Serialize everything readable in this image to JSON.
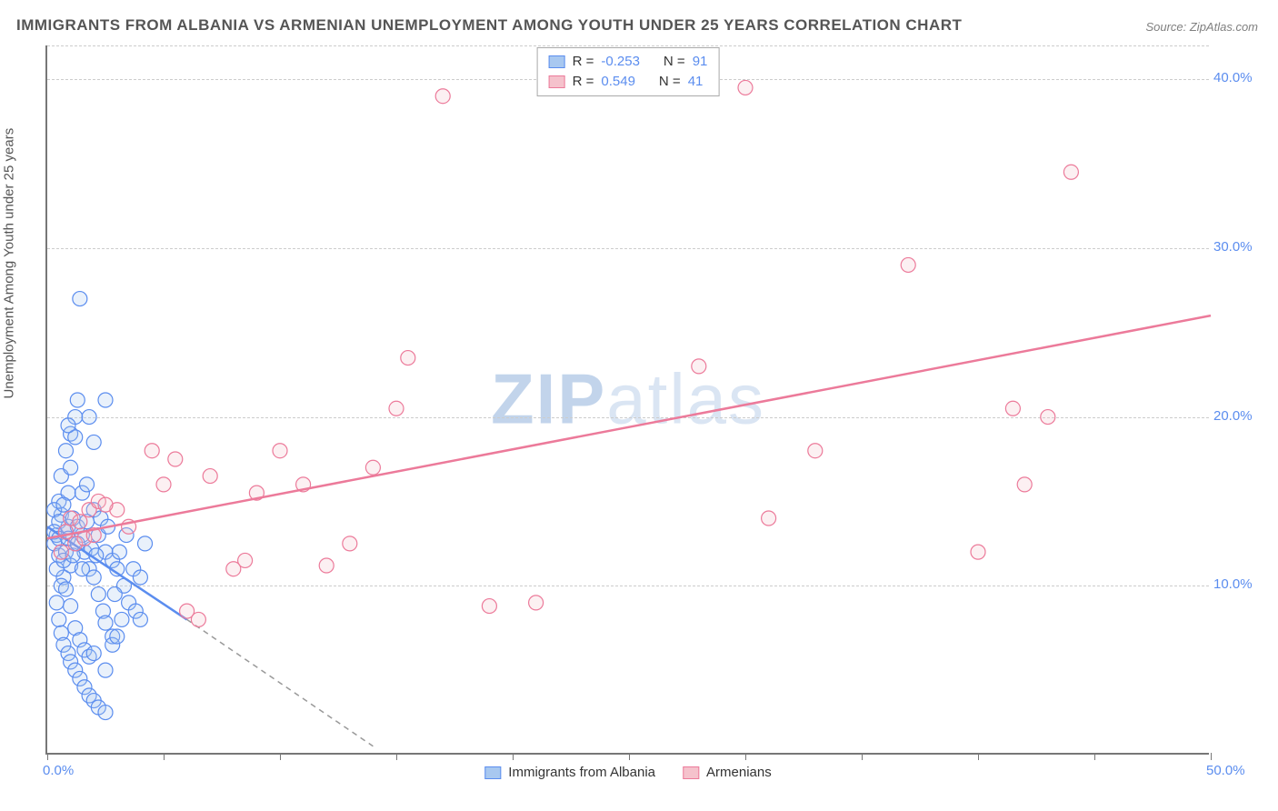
{
  "title": "IMMIGRANTS FROM ALBANIA VS ARMENIAN UNEMPLOYMENT AMONG YOUTH UNDER 25 YEARS CORRELATION CHART",
  "source": "Source: ZipAtlas.com",
  "y_axis_label": "Unemployment Among Youth under 25 years",
  "watermark_bold": "ZIP",
  "watermark_rest": "atlas",
  "chart": {
    "type": "scatter",
    "xlim": [
      0,
      50
    ],
    "ylim": [
      0,
      42
    ],
    "x_ticks": [
      0,
      5,
      10,
      15,
      20,
      25,
      30,
      35,
      40,
      45,
      50
    ],
    "x_tick_labels": {
      "0": "0.0%",
      "50": "50.0%"
    },
    "y_ticks": [
      10,
      20,
      30,
      40
    ],
    "y_tick_labels": {
      "10": "10.0%",
      "20": "20.0%",
      "30": "30.0%",
      "40": "40.0%"
    },
    "grid_color": "#cccccc",
    "background_color": "#ffffff",
    "axis_color": "#777777",
    "tick_label_color": "#5b8def",
    "marker_radius": 8,
    "series": [
      {
        "name": "Immigrants from Albania",
        "color_fill": "#a8c8f0",
        "color_stroke": "#5b8def",
        "R_label": "R =",
        "R": "-0.253",
        "N_label": "N =",
        "N": "91",
        "trend": {
          "x1": 0,
          "y1": 13.5,
          "x2": 6,
          "y2": 8.0,
          "dash_ext_x": 14,
          "dash_ext_y": 0.5
        },
        "points": [
          [
            0.3,
            12.5
          ],
          [
            0.4,
            13.0
          ],
          [
            0.5,
            11.8
          ],
          [
            0.6,
            14.2
          ],
          [
            0.7,
            10.5
          ],
          [
            0.8,
            12.0
          ],
          [
            0.9,
            13.5
          ],
          [
            1.0,
            11.2
          ],
          [
            0.5,
            15.0
          ],
          [
            0.6,
            16.5
          ],
          [
            0.8,
            18.0
          ],
          [
            1.0,
            19.0
          ],
          [
            1.2,
            20.0
          ],
          [
            1.3,
            21.0
          ],
          [
            1.0,
            17.0
          ],
          [
            0.9,
            15.5
          ],
          [
            1.5,
            13.0
          ],
          [
            1.6,
            12.0
          ],
          [
            1.8,
            11.0
          ],
          [
            2.0,
            10.5
          ],
          [
            2.2,
            9.5
          ],
          [
            2.4,
            8.5
          ],
          [
            2.5,
            7.8
          ],
          [
            2.8,
            7.0
          ],
          [
            0.4,
            9.0
          ],
          [
            0.5,
            8.0
          ],
          [
            0.6,
            7.2
          ],
          [
            0.7,
            6.5
          ],
          [
            0.9,
            6.0
          ],
          [
            1.0,
            5.5
          ],
          [
            1.2,
            5.0
          ],
          [
            1.4,
            4.5
          ],
          [
            1.6,
            4.0
          ],
          [
            1.8,
            3.5
          ],
          [
            2.0,
            3.2
          ],
          [
            2.2,
            2.8
          ],
          [
            2.5,
            2.5
          ],
          [
            2.8,
            6.5
          ],
          [
            3.0,
            7.0
          ],
          [
            3.2,
            8.0
          ],
          [
            0.3,
            14.5
          ],
          [
            0.5,
            13.8
          ],
          [
            0.7,
            14.8
          ],
          [
            0.8,
            13.2
          ],
          [
            1.1,
            14.0
          ],
          [
            1.3,
            13.5
          ],
          [
            1.5,
            15.5
          ],
          [
            1.7,
            16.0
          ],
          [
            2.0,
            14.5
          ],
          [
            2.2,
            13.0
          ],
          [
            2.5,
            12.0
          ],
          [
            2.8,
            11.5
          ],
          [
            3.0,
            11.0
          ],
          [
            3.3,
            10.0
          ],
          [
            3.5,
            9.0
          ],
          [
            3.8,
            8.5
          ],
          [
            4.0,
            8.0
          ],
          [
            4.2,
            12.5
          ],
          [
            1.4,
            27.0
          ],
          [
            2.5,
            21.0
          ],
          [
            1.8,
            20.0
          ],
          [
            2.0,
            18.5
          ],
          [
            1.2,
            18.8
          ],
          [
            0.9,
            19.5
          ],
          [
            0.4,
            11.0
          ],
          [
            0.6,
            10.0
          ],
          [
            0.8,
            9.8
          ],
          [
            1.0,
            8.8
          ],
          [
            1.2,
            7.5
          ],
          [
            1.4,
            6.8
          ],
          [
            1.6,
            6.2
          ],
          [
            1.8,
            5.8
          ],
          [
            0.3,
            13.2
          ],
          [
            0.5,
            12.8
          ],
          [
            0.7,
            11.5
          ],
          [
            0.9,
            12.8
          ],
          [
            1.1,
            11.8
          ],
          [
            1.3,
            12.5
          ],
          [
            1.5,
            11.0
          ],
          [
            1.7,
            13.8
          ],
          [
            1.9,
            12.2
          ],
          [
            2.1,
            11.8
          ],
          [
            2.3,
            14.0
          ],
          [
            2.6,
            13.5
          ],
          [
            2.9,
            9.5
          ],
          [
            3.1,
            12.0
          ],
          [
            3.4,
            13.0
          ],
          [
            3.7,
            11.0
          ],
          [
            4.0,
            10.5
          ],
          [
            2.0,
            6.0
          ],
          [
            2.5,
            5.0
          ]
        ]
      },
      {
        "name": "Armenians",
        "color_fill": "#f5c2cc",
        "color_stroke": "#ec7a9a",
        "R_label": "R =",
        "R": "0.549",
        "N_label": "N =",
        "N": "41",
        "trend": {
          "x1": 0,
          "y1": 12.8,
          "x2": 50,
          "y2": 26.0
        },
        "points": [
          [
            0.6,
            12.0
          ],
          [
            0.8,
            13.2
          ],
          [
            1.0,
            14.0
          ],
          [
            1.2,
            12.5
          ],
          [
            1.4,
            13.8
          ],
          [
            1.6,
            12.8
          ],
          [
            1.8,
            14.5
          ],
          [
            2.0,
            13.0
          ],
          [
            2.2,
            15.0
          ],
          [
            3.0,
            14.5
          ],
          [
            3.5,
            13.5
          ],
          [
            4.5,
            18.0
          ],
          [
            5.0,
            16.0
          ],
          [
            5.5,
            17.5
          ],
          [
            6.0,
            8.5
          ],
          [
            7.0,
            16.5
          ],
          [
            8.0,
            11.0
          ],
          [
            8.5,
            11.5
          ],
          [
            9.0,
            15.5
          ],
          [
            10.0,
            18.0
          ],
          [
            11.0,
            16.0
          ],
          [
            12.0,
            11.2
          ],
          [
            13.0,
            12.5
          ],
          [
            14.0,
            17.0
          ],
          [
            15.0,
            20.5
          ],
          [
            15.5,
            23.5
          ],
          [
            17.0,
            39.0
          ],
          [
            19.0,
            8.8
          ],
          [
            21.0,
            9.0
          ],
          [
            28.0,
            23.0
          ],
          [
            30.0,
            39.5
          ],
          [
            31.0,
            14.0
          ],
          [
            33.0,
            18.0
          ],
          [
            37.0,
            29.0
          ],
          [
            40.0,
            12.0
          ],
          [
            41.5,
            20.5
          ],
          [
            42.0,
            16.0
          ],
          [
            43.0,
            20.0
          ],
          [
            44.0,
            34.5
          ],
          [
            6.5,
            8.0
          ],
          [
            2.5,
            14.8
          ]
        ]
      }
    ]
  }
}
